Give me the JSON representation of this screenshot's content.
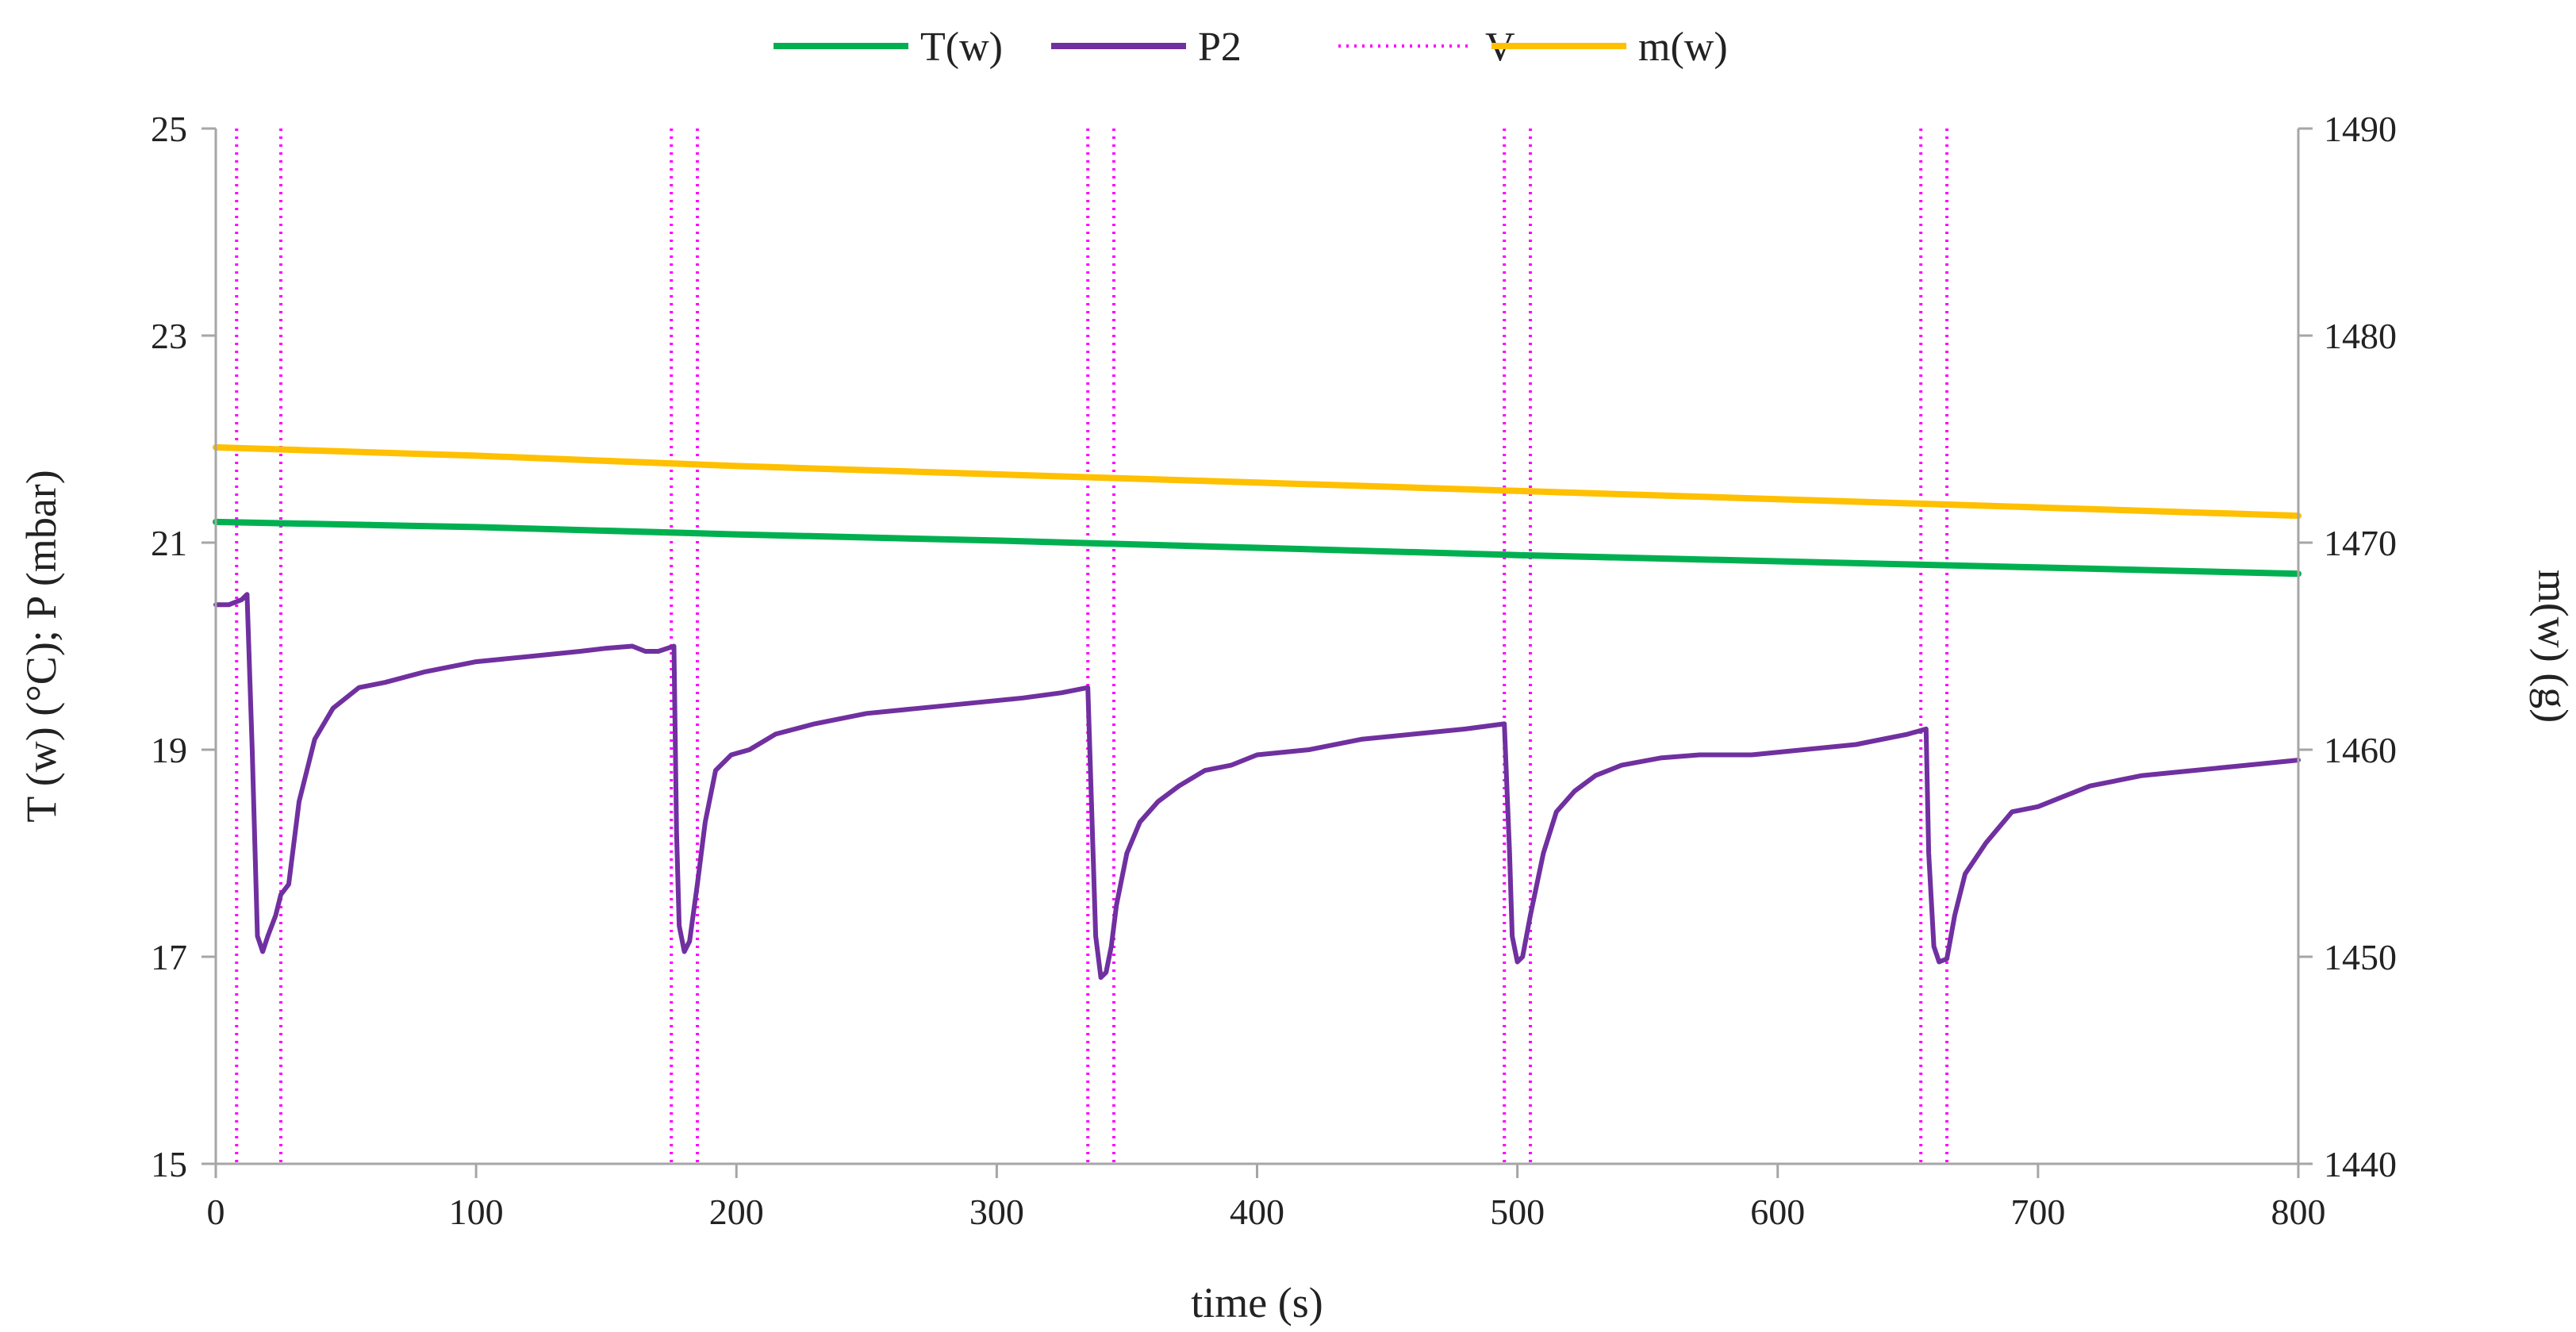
{
  "chart_data": {
    "type": "line",
    "title": "",
    "xlabel": "time (s)",
    "ylabel_left": "T (w) (°C); P (mbar)",
    "ylabel_right": "m(w) (g)",
    "xlim": [
      0,
      800
    ],
    "ylim_left": [
      15,
      25
    ],
    "ylim_right": [
      1440,
      1490
    ],
    "x_ticks": [
      "0",
      "100",
      "200",
      "300",
      "400",
      "500",
      "600",
      "700",
      "800"
    ],
    "y_left_ticks": [
      "15",
      "17",
      "19",
      "21",
      "23",
      "25"
    ],
    "y_right_ticks": [
      "1440",
      "1450",
      "1460",
      "1470",
      "1480",
      "1490"
    ],
    "grid": false,
    "legend_position": "top-center",
    "legend": [
      {
        "key": "T",
        "label": "T(w)"
      },
      {
        "key": "P2",
        "label": "P2"
      },
      {
        "key": "V",
        "label": "V"
      },
      {
        "key": "m",
        "label": "m(w)"
      }
    ],
    "colors": {
      "T": "#00B050",
      "P2": "#7030A0",
      "V": "#FF00FF",
      "m": "#FFC000",
      "axis": "#A6A6A6"
    },
    "series": [
      {
        "name": "T(w)",
        "key": "T",
        "axis": "left",
        "style": "solid",
        "x": [
          0,
          100,
          200,
          300,
          400,
          500,
          600,
          700,
          800
        ],
        "y": [
          21.2,
          21.15,
          21.08,
          21.02,
          20.95,
          20.88,
          20.82,
          20.76,
          20.7
        ]
      },
      {
        "name": "m(w)",
        "key": "m",
        "axis": "right",
        "style": "solid",
        "x": [
          0,
          100,
          200,
          300,
          400,
          500,
          600,
          700,
          800
        ],
        "y": [
          1474.6,
          1474.2,
          1473.7,
          1473.3,
          1472.9,
          1472.5,
          1472.1,
          1471.7,
          1471.3
        ]
      },
      {
        "name": "P2",
        "key": "P2",
        "axis": "left",
        "style": "solid",
        "x": [
          0,
          5,
          10,
          12,
          14,
          16,
          18,
          20,
          23,
          25,
          28,
          32,
          38,
          45,
          55,
          65,
          80,
          100,
          120,
          140,
          150,
          160,
          165,
          170,
          176,
          177,
          178,
          180,
          182,
          185,
          188,
          192,
          198,
          205,
          215,
          230,
          250,
          270,
          290,
          310,
          325,
          335,
          337,
          338,
          340,
          342,
          344,
          346,
          350,
          355,
          362,
          370,
          380,
          390,
          400,
          420,
          440,
          460,
          480,
          495,
          497,
          498,
          500,
          502,
          505,
          510,
          515,
          522,
          530,
          540,
          555,
          570,
          590,
          610,
          630,
          650,
          657,
          658,
          660,
          662,
          665,
          668,
          672,
          680,
          690,
          700,
          710,
          720,
          740,
          760,
          780,
          800
        ],
        "y": [
          20.4,
          20.4,
          20.45,
          20.5,
          19.0,
          17.2,
          17.05,
          17.2,
          17.4,
          17.6,
          17.7,
          18.5,
          19.1,
          19.4,
          19.6,
          19.65,
          19.75,
          19.85,
          19.9,
          19.95,
          19.98,
          20.0,
          19.95,
          19.95,
          20.0,
          18.2,
          17.3,
          17.05,
          17.15,
          17.7,
          18.3,
          18.8,
          18.95,
          19.0,
          19.15,
          19.25,
          19.35,
          19.4,
          19.45,
          19.5,
          19.55,
          19.6,
          18.0,
          17.2,
          16.8,
          16.85,
          17.1,
          17.5,
          18.0,
          18.3,
          18.5,
          18.65,
          18.8,
          18.85,
          18.95,
          19.0,
          19.1,
          19.15,
          19.2,
          19.25,
          18.0,
          17.2,
          16.95,
          17.0,
          17.4,
          18.0,
          18.4,
          18.6,
          18.75,
          18.85,
          18.92,
          18.95,
          18.95,
          19.0,
          19.05,
          19.15,
          19.2,
          18.0,
          17.1,
          16.95,
          16.98,
          17.4,
          17.8,
          18.1,
          18.4,
          18.45,
          18.55,
          18.65,
          18.75,
          18.8,
          18.85,
          18.9
        ]
      }
    ],
    "V_lines_x": [
      8,
      25,
      175,
      185,
      335,
      345,
      495,
      505,
      655,
      665
    ]
  }
}
